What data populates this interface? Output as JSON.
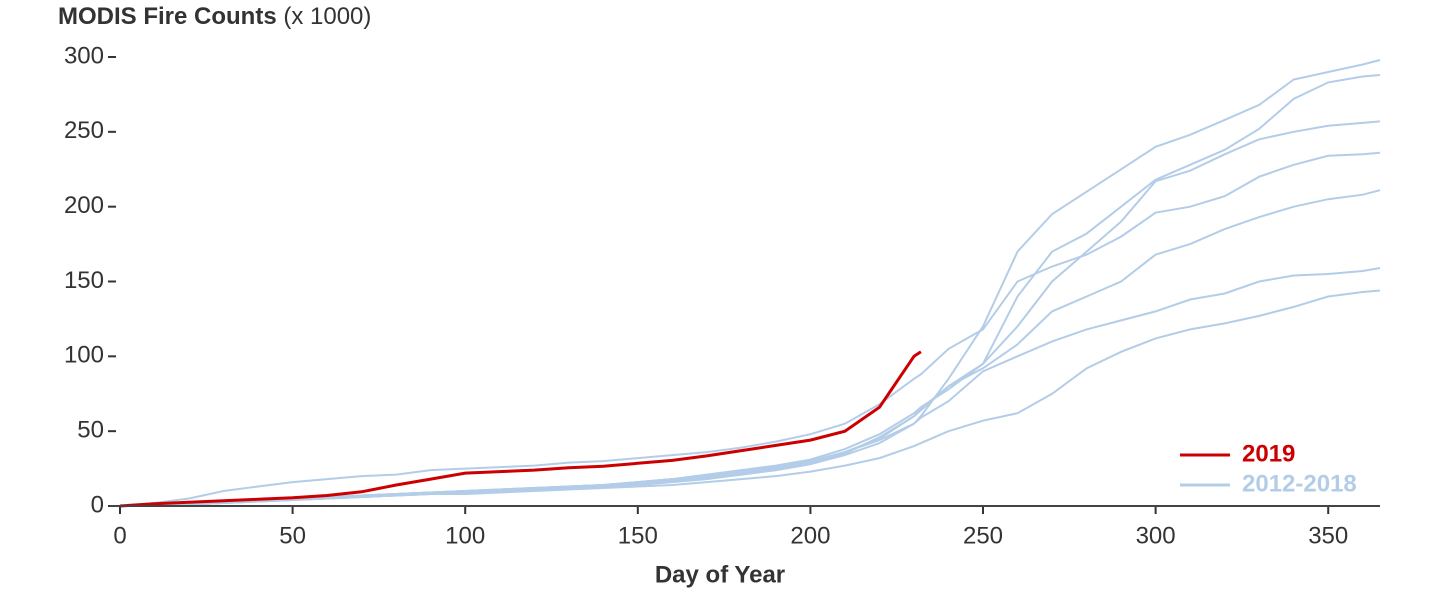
{
  "chart_data": {
    "type": "line",
    "title": "MODIS Fire Counts",
    "title_note": "(x 1000)",
    "x_label": "Day of Year",
    "x": [
      0,
      10,
      20,
      30,
      40,
      50,
      60,
      70,
      80,
      90,
      100,
      110,
      120,
      130,
      140,
      150,
      160,
      170,
      180,
      190,
      200,
      210,
      220,
      230,
      232,
      240,
      250,
      260,
      270,
      280,
      290,
      300,
      310,
      320,
      330,
      340,
      350,
      360,
      365
    ],
    "xlim": [
      0,
      365
    ],
    "xticks": [
      0,
      50,
      100,
      150,
      200,
      250,
      300,
      350
    ],
    "ylim": [
      0,
      300
    ],
    "yticks": [
      0,
      50,
      100,
      150,
      200,
      250,
      300
    ],
    "series": [
      {
        "name": "2019",
        "color": "#cc0000",
        "values": [
          0,
          1.5,
          2.5,
          3.5,
          4.5,
          5.5,
          7,
          9.5,
          14,
          18,
          22,
          23,
          24,
          25.5,
          26.5,
          28.5,
          30.5,
          33.5,
          37,
          40.5,
          44,
          50,
          66,
          100,
          103,
          null,
          null,
          null,
          null,
          null,
          null,
          null,
          null,
          null,
          null,
          null,
          null,
          null,
          null
        ]
      },
      {
        "name": "2012-2018",
        "color": "#b3cde8",
        "lines": [
          [
            0,
            2,
            5,
            10,
            13,
            16,
            18,
            20,
            21,
            24,
            25,
            26,
            27,
            29,
            30,
            32,
            34,
            36,
            39,
            43,
            48,
            55,
            68,
            85,
            88,
            105,
            118,
            150,
            160,
            168,
            180,
            196,
            200,
            207,
            220,
            228,
            234,
            235,
            236
          ],
          [
            0,
            0.5,
            1,
            2,
            3,
            4,
            5,
            6,
            7,
            8,
            9,
            10,
            11,
            12,
            13,
            15,
            17,
            19,
            21,
            24,
            28,
            34,
            42,
            55,
            60,
            85,
            120,
            170,
            195,
            210,
            225,
            240,
            248,
            258,
            268,
            285,
            290,
            295,
            298
          ],
          [
            0,
            1,
            2,
            3,
            4,
            5,
            6,
            7,
            8,
            9,
            10,
            11,
            12,
            13,
            14,
            16,
            18,
            20,
            23,
            26,
            30,
            36,
            45,
            60,
            65,
            80,
            95,
            140,
            170,
            182,
            200,
            218,
            228,
            238,
            252,
            272,
            283,
            287,
            288
          ],
          [
            0,
            1,
            2,
            3,
            4,
            5,
            6,
            7,
            8,
            9,
            10,
            11,
            12,
            13,
            14,
            16,
            18,
            21,
            24,
            27,
            31,
            38,
            48,
            62,
            66,
            78,
            95,
            120,
            150,
            170,
            190,
            217,
            224,
            235,
            245,
            250,
            254,
            256,
            257
          ],
          [
            0,
            0.5,
            1,
            2,
            3,
            4,
            5,
            6,
            7,
            8,
            9,
            10,
            11,
            12,
            13,
            14,
            16,
            18,
            21,
            24,
            28,
            35,
            46,
            60,
            64,
            80,
            92,
            108,
            130,
            140,
            150,
            168,
            175,
            185,
            193,
            200,
            205,
            208,
            211
          ],
          [
            0,
            1,
            2,
            3,
            4,
            5,
            6,
            7,
            8,
            9,
            10,
            11,
            12,
            13,
            14,
            16,
            18,
            20,
            22,
            25,
            29,
            36,
            44,
            55,
            59,
            70,
            90,
            100,
            110,
            118,
            124,
            130,
            138,
            142,
            150,
            154,
            155,
            157,
            159
          ],
          [
            0,
            0.5,
            1,
            2,
            3,
            4,
            5,
            6,
            7,
            8,
            8,
            9,
            10,
            11,
            12,
            13,
            14,
            16,
            18,
            20,
            23,
            27,
            32,
            40,
            42,
            50,
            57,
            62,
            75,
            92,
            103,
            112,
            118,
            122,
            127,
            133,
            140,
            143,
            144
          ]
        ]
      }
    ]
  }
}
